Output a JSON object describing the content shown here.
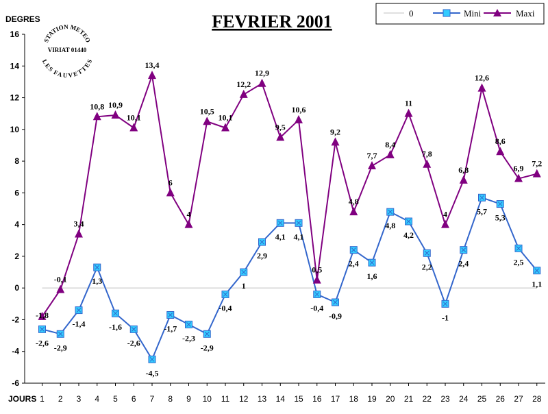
{
  "chart_data": {
    "type": "line",
    "title": "FEVRIER 2001",
    "ylabel": "DEGRES",
    "xlabel": "JOURS",
    "ylim": [
      -6,
      16
    ],
    "yticks": [
      -6,
      -4,
      -2,
      0,
      2,
      4,
      6,
      8,
      10,
      12,
      14,
      16
    ],
    "x": [
      1,
      2,
      3,
      4,
      5,
      6,
      7,
      8,
      9,
      10,
      11,
      12,
      13,
      14,
      15,
      16,
      17,
      18,
      19,
      20,
      21,
      22,
      23,
      24,
      25,
      26,
      27,
      28
    ],
    "legend_position": "top-right",
    "series": [
      {
        "name": "0",
        "color": "#c0c0c0",
        "marker": "none",
        "values": [
          0,
          0,
          0,
          0,
          0,
          0,
          0,
          0,
          0,
          0,
          0,
          0,
          0,
          0,
          0,
          0,
          0,
          0,
          0,
          0,
          0,
          0,
          0,
          0,
          0,
          0,
          0,
          0
        ]
      },
      {
        "name": "Mini",
        "color": "#3366cc",
        "marker_color": "#33ccff",
        "marker": "square-x",
        "values": [
          -2.6,
          -2.9,
          -1.4,
          1.3,
          -1.6,
          -2.6,
          -4.5,
          -1.7,
          -2.3,
          -2.9,
          -0.4,
          1,
          2.9,
          4.1,
          4.1,
          -0.4,
          -0.9,
          2.4,
          1.6,
          4.8,
          4.2,
          2.2,
          -1,
          2.4,
          5.7,
          5.3,
          2.5,
          1.1
        ],
        "labels": [
          "-2,6",
          "-2,9",
          "-1,4",
          "1,3",
          "-1,6",
          "-2,6",
          "-4,5",
          "-1,7",
          "-2,3",
          "-2,9",
          "-0,4",
          "1",
          "2,9",
          "4,1",
          "4,1",
          "-0,4",
          "-0,9",
          "2,4",
          "1,6",
          "4,8",
          "4,2",
          "2,2",
          "-1",
          "2,4",
          "5,7",
          "5,3",
          "2,5",
          "1,1"
        ]
      },
      {
        "name": "Maxi",
        "color": "#800080",
        "marker_color": "#800080",
        "marker": "triangle",
        "values": [
          -1.8,
          -0.1,
          3.4,
          10.8,
          10.9,
          10.1,
          13.4,
          6,
          4,
          10.5,
          10.1,
          12.2,
          12.9,
          9.5,
          10.6,
          0.5,
          9.2,
          4.8,
          7.7,
          8.4,
          11,
          7.8,
          4,
          6.8,
          12.6,
          8.6,
          6.9,
          7.2
        ],
        "labels": [
          "-1,8",
          "-0,1",
          "3,4",
          "10,8",
          "10,9",
          "10,1",
          "13,4",
          "6",
          "4",
          "10,5",
          "10,1",
          "12,2",
          "12,9",
          "9,5",
          "10,6",
          "0,5",
          "9,2",
          "4,8",
          "7,7",
          "8,4",
          "11",
          "7,8",
          "4",
          "6,8",
          "12,6",
          "8,6",
          "6,9",
          "7,2"
        ]
      }
    ]
  },
  "stamp": {
    "line1": "STATION METEO",
    "line2": "VIRIAT 01440",
    "line3": "LES FAUVETTES"
  }
}
